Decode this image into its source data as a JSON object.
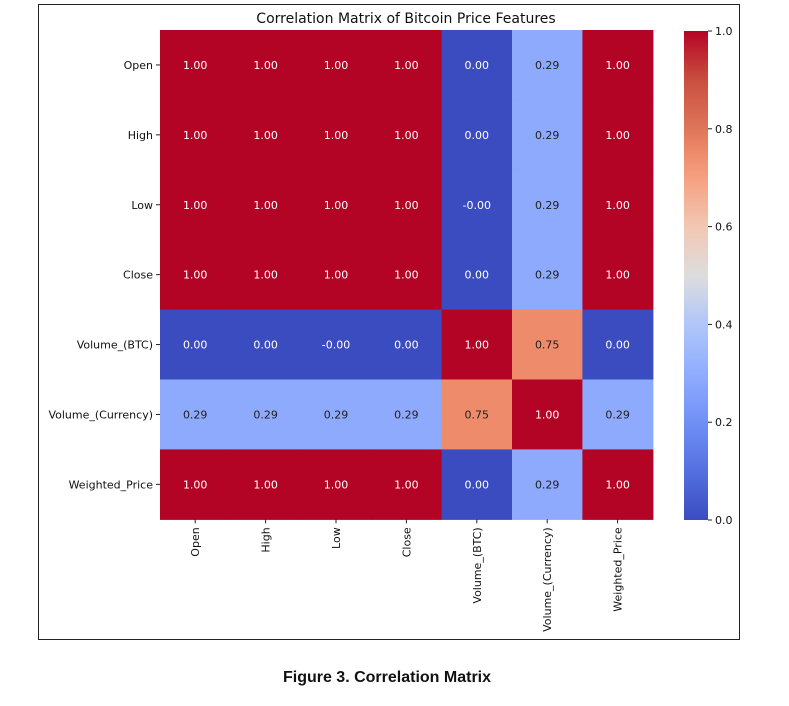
{
  "figure": {
    "caption": "Figure 3. Correlation Matrix"
  },
  "chart_data": {
    "type": "heatmap",
    "title": "Correlation Matrix of Bitcoin Price Features",
    "rows": [
      "Open",
      "High",
      "Low",
      "Close",
      "Volume_(BTC)",
      "Volume_(Currency)",
      "Weighted_Price"
    ],
    "columns": [
      "Open",
      "High",
      "Low",
      "Close",
      "Volume_(BTC)",
      "Volume_(Currency)",
      "Weighted_Price"
    ],
    "values": [
      [
        1.0,
        1.0,
        1.0,
        1.0,
        0.0,
        0.29,
        1.0
      ],
      [
        1.0,
        1.0,
        1.0,
        1.0,
        0.0,
        0.29,
        1.0
      ],
      [
        1.0,
        1.0,
        1.0,
        1.0,
        -0.0,
        0.29,
        1.0
      ],
      [
        1.0,
        1.0,
        1.0,
        1.0,
        0.0,
        0.29,
        1.0
      ],
      [
        0.0,
        0.0,
        -0.0,
        0.0,
        1.0,
        0.75,
        0.0
      ],
      [
        0.29,
        0.29,
        0.29,
        0.29,
        0.75,
        1.0,
        0.29
      ],
      [
        1.0,
        1.0,
        1.0,
        1.0,
        0.0,
        0.29,
        1.0
      ]
    ],
    "cell_labels": [
      [
        "1.00",
        "1.00",
        "1.00",
        "1.00",
        "0.00",
        "0.29",
        "1.00"
      ],
      [
        "1.00",
        "1.00",
        "1.00",
        "1.00",
        "0.00",
        "0.29",
        "1.00"
      ],
      [
        "1.00",
        "1.00",
        "1.00",
        "1.00",
        "-0.00",
        "0.29",
        "1.00"
      ],
      [
        "1.00",
        "1.00",
        "1.00",
        "1.00",
        "0.00",
        "0.29",
        "1.00"
      ],
      [
        "0.00",
        "0.00",
        "-0.00",
        "0.00",
        "1.00",
        "0.75",
        "0.00"
      ],
      [
        "0.29",
        "0.29",
        "0.29",
        "0.29",
        "0.75",
        "1.00",
        "0.29"
      ],
      [
        "1.00",
        "1.00",
        "1.00",
        "1.00",
        "0.00",
        "0.29",
        "1.00"
      ]
    ],
    "colormap": "coolwarm",
    "colors": {
      "low": "#3b4cc0",
      "mid": "#dddddd",
      "high": "#b40426"
    },
    "colorbar": {
      "range": [
        0.0,
        1.0
      ],
      "ticks": [
        0.0,
        0.2,
        0.4,
        0.6,
        0.8,
        1.0
      ],
      "tick_labels": [
        "0.0",
        "0.2",
        "0.4",
        "0.6",
        "0.8",
        "1.0"
      ]
    }
  }
}
